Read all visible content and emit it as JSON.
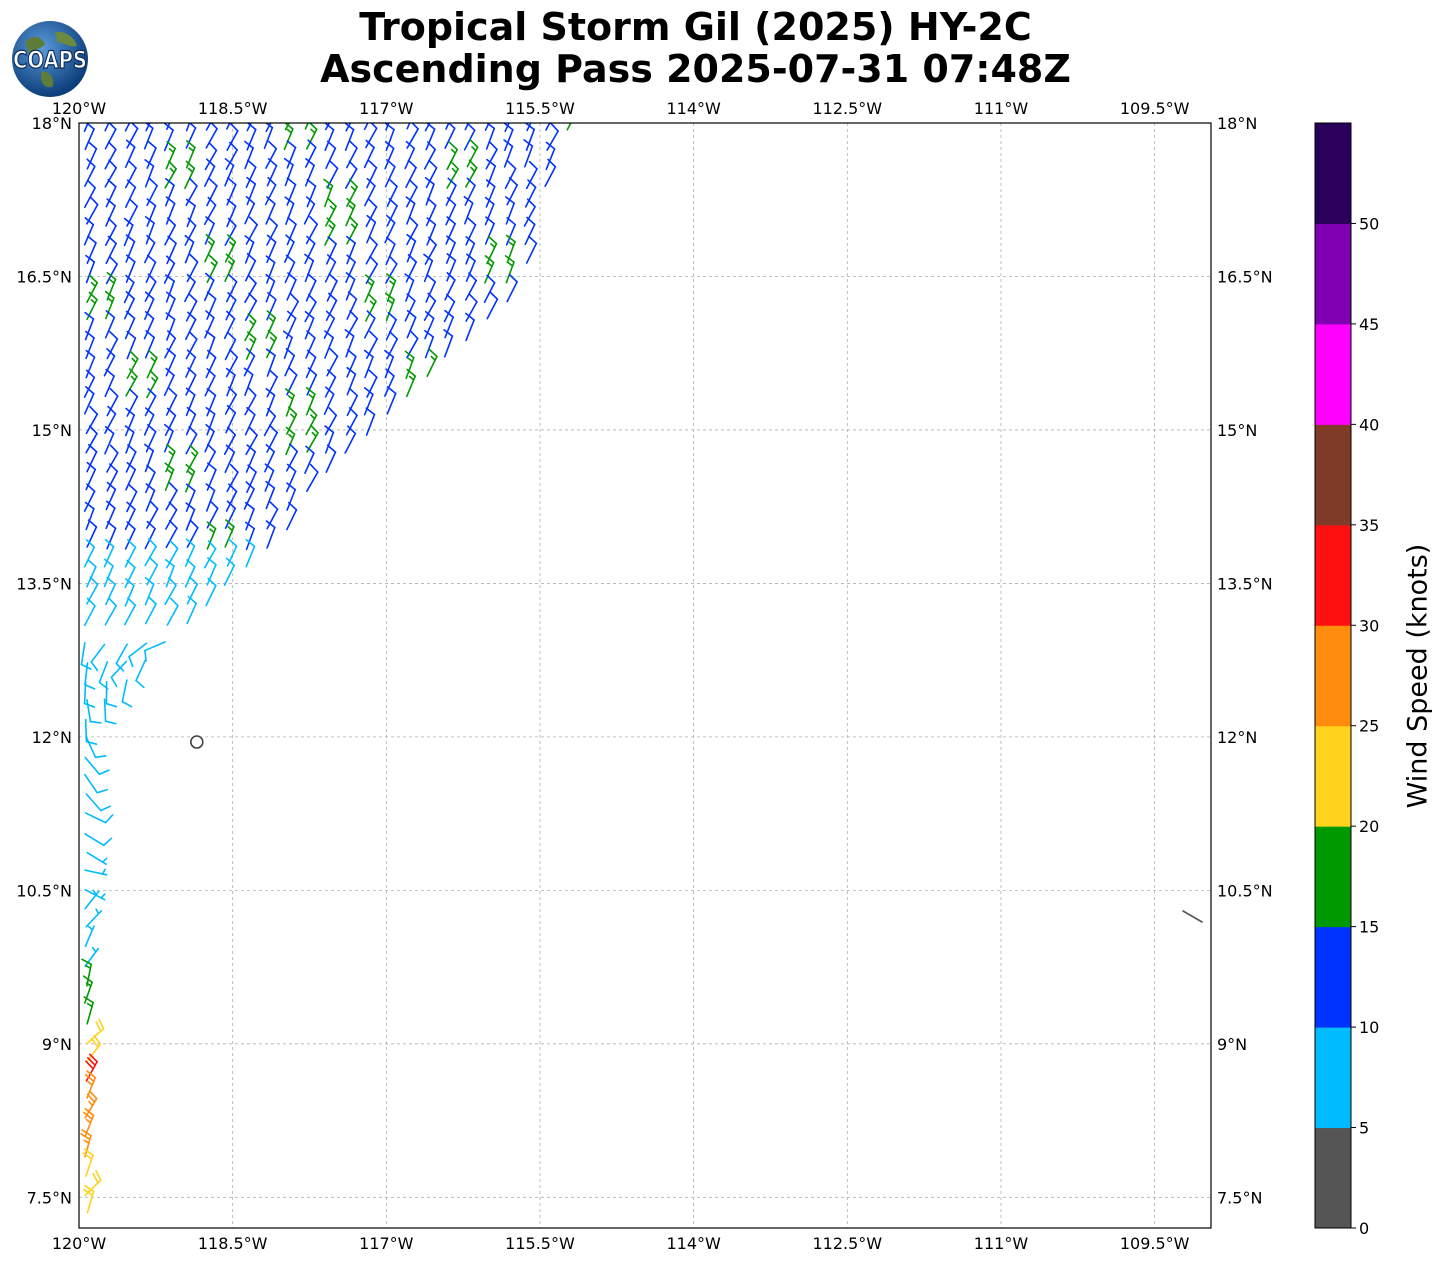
{
  "title": {
    "line1": "Tropical Storm Gil (2025) HY-2C",
    "line2": "Ascending Pass 2025-07-31 07:48Z"
  },
  "logo": {
    "text": "COAPS",
    "icon": "globe-icon"
  },
  "map": {
    "lon_labels": [
      "120°W",
      "118.5°W",
      "117°W",
      "115.5°W",
      "114°W",
      "112.5°W",
      "111°W",
      "109.5°W"
    ],
    "lon_values": [
      -120,
      -118.5,
      -117,
      -115.5,
      -114,
      -112.5,
      -111,
      -109.5
    ],
    "lat_labels": [
      "18°N",
      "16.5°N",
      "15°N",
      "13.5°N",
      "12°N",
      "10.5°N",
      "9°N",
      "7.5°N"
    ],
    "lat_values": [
      18,
      16.5,
      15,
      13.5,
      12,
      10.5,
      9,
      7.5
    ],
    "lon_range": [
      -120,
      -108.95
    ],
    "lat_range": [
      7.2,
      18
    ],
    "grid": true,
    "storm_center": [
      -118.85,
      11.95
    ]
  },
  "colorbar": {
    "label": "Wind Speed (knots)",
    "ticks": [
      "0",
      "5",
      "10",
      "15",
      "20",
      "25",
      "30",
      "35",
      "40",
      "45",
      "50"
    ],
    "colors": [
      "#555555",
      "#00bbff",
      "#0033ff",
      "#009900",
      "#ffd21c",
      "#ff8c0c",
      "#ff1010",
      "#803a28",
      "#ff00ff",
      "#8000b4",
      "#2b005c"
    ],
    "range": [
      0,
      55
    ]
  }
}
